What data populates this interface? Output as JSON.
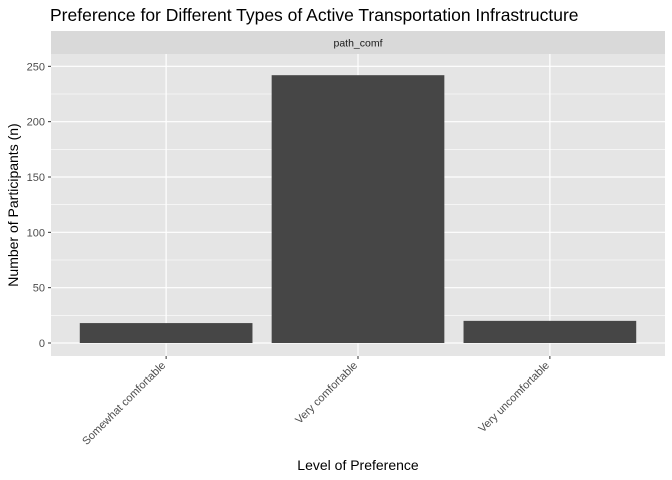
{
  "chart_data": {
    "type": "bar",
    "title": "Preference for Different Types of Active Transportation Infrastructure",
    "facet_label": "path_comf",
    "xlabel": "Level of Preference",
    "ylabel": "Number of Participants (n)",
    "categories": [
      "Somewhat comfortable",
      "Very comfortable",
      "Very uncomfortable"
    ],
    "values": [
      18,
      242,
      20
    ],
    "ylim": [
      0,
      255
    ],
    "yticks": [
      0,
      50,
      100,
      150,
      200,
      250
    ],
    "ytick_labels": [
      "0",
      "50",
      "100",
      "150",
      "200",
      "250"
    ],
    "grid": true,
    "legend": "none",
    "colors": {
      "bar": "#464646",
      "panel_background": "#e5e5e5",
      "strip_background": "#d9d9d9",
      "grid": "#ffffff"
    }
  }
}
